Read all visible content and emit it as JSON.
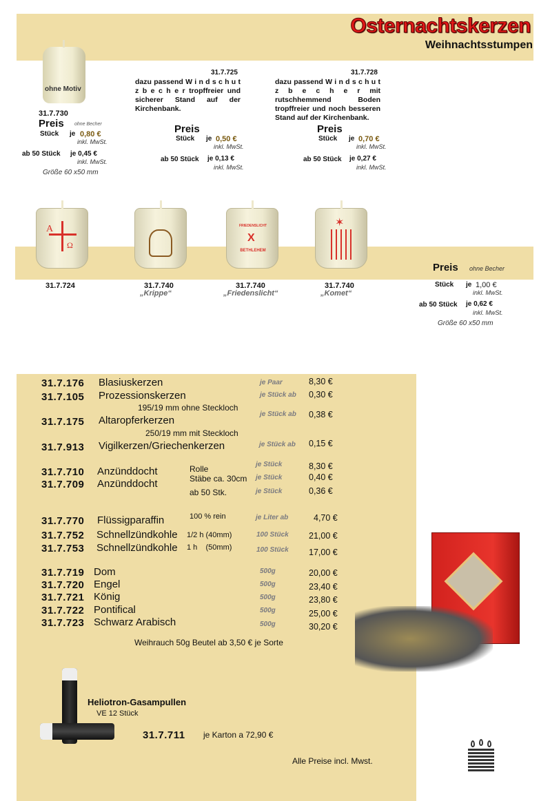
{
  "header": {
    "title": "Osternachtskerzen",
    "subtitle": "Weihnachtsstumpen"
  },
  "colors": {
    "band": "#f0dea6",
    "title": "#e01818"
  },
  "p730": {
    "label": "ohne Motiv",
    "code": "31.7.730",
    "preis": "Preis",
    "note": "ohne Becher",
    "stueck": "Stück",
    "je1": "je",
    "price1": "0,80 €",
    "mwst1": "inkl. MwSt.",
    "ab50": "ab 50 Stück",
    "je2": "je 0,45 €",
    "mwst2": "inkl. MwSt.",
    "size": "Größe 60 x50 mm"
  },
  "p725": {
    "code": "31.7.725",
    "desc": "dazu passend W i n d s c h u t z b e c h e r tropffreier und sicherer Stand auf der Kirchenbank.",
    "preis": "Preis",
    "stueck": "Stück",
    "je1": "je",
    "price1": "0,50 €",
    "mwst1": "inkl. MwSt.",
    "ab50": "ab 50 Stück",
    "je2": "je 0,13 €",
    "mwst2": "inkl. MwSt."
  },
  "p728": {
    "code": "31.7.728",
    "desc": "dazu passend W i n d s c h u t z b e c h e r mit rutschhemmend Boden tropffreier und noch besseren Stand auf der Kirchenbank.",
    "preis": "Preis",
    "stueck": "Stück",
    "je1": "je",
    "price1": "0,70 €",
    "mwst1": "inkl. MwSt.",
    "ab50": "ab 50 Stück",
    "je2": "je 0,27 €",
    "mwst2": "inkl. MwSt."
  },
  "cups": [
    {
      "code": "31.7.724",
      "label": "",
      "motif": "alpha-omega-cross"
    },
    {
      "code": "31.7.740",
      "label": "„Krippe“",
      "motif": "nativity"
    },
    {
      "code": "31.7.740",
      "label": "„Friedenslicht“",
      "motif": "friedenslicht",
      "t1": "FRIEDENSLICHT",
      "t2": "BETHLEHEM"
    },
    {
      "code": "31.7.740",
      "label": "„Komet“",
      "motif": "comet"
    }
  ],
  "cupprice": {
    "preis": "Preis",
    "note": "ohne Becher",
    "stueck": "Stück",
    "je1": "je",
    "price1": "1,00 €",
    "mwst1": "inkl. MwSt.",
    "ab50": "ab 50 Stück",
    "je2": "je 0,62 €",
    "mwst2": "inkl. MwSt.",
    "size": "Größe 60 x50 mm"
  },
  "list": {
    "r176": {
      "code": "31.7.176",
      "name": "Blasiuskerzen",
      "unit": "je Paar",
      "price": "8,30 €"
    },
    "r105": {
      "code": "31.7.105",
      "name": "Prozessionskerzen",
      "unit": "je Stück ab",
      "price": "0,30 €",
      "note": "195/19 mm ohne Steckloch"
    },
    "r175": {
      "code": "31.7.175",
      "name": "Altaropferkerzen",
      "unit": "je Stück ab",
      "price": "0,38 €",
      "note": "250/19 mm mit Steckloch"
    },
    "r913": {
      "code": "31.7.913",
      "name": "Vigilkerzen/Griechenkerzen",
      "unit": "je Stück ab",
      "price": "0,15 €"
    },
    "r710": {
      "code": "31.7.710",
      "name": "Anzünddocht",
      "opt": "Rolle",
      "unit": "je Stück",
      "price": "8,30 €"
    },
    "r709": {
      "code": "31.7.709",
      "name": "Anzünddocht",
      "opt": "Stäbe ca. 30cm",
      "unit": "je Stück",
      "price": "0,40 €",
      "opt2": "ab 50 Stk.",
      "unit2": "je Stück",
      "price2": "0,36 €"
    },
    "r770": {
      "code": "31.7.770",
      "name": "Flüssigparaffin",
      "opt": "100 % rein",
      "unit": "je Liter ab",
      "price": "4,70 €"
    },
    "r752": {
      "code": "31.7.752",
      "name": "Schnellzündkohle",
      "opt": "1/2 h (40mm)",
      "unit": "100 Stück",
      "price": "21,00 €"
    },
    "r753": {
      "code": "31.7.753",
      "name": "Schnellzündkohle",
      "opt": "1 h    (50mm)",
      "unit": "100 Stück",
      "price": "17,00 €"
    },
    "r719": {
      "code": "31.7.719",
      "name": "Dom",
      "unit": "500g",
      "price": "20,00 €"
    },
    "r720": {
      "code": "31.7.720",
      "name": "Engel",
      "unit": "500g",
      "price": "23,40 €"
    },
    "r721": {
      "code": "31.7.721",
      "name": "König",
      "unit": "500g",
      "price": "23,80 €"
    },
    "r722": {
      "code": "31.7.722",
      "name": "Pontifical",
      "unit": "500g",
      "price": "25,00 €"
    },
    "r723": {
      "code": "31.7.723",
      "name": "Schwarz Arabisch",
      "unit": "500g",
      "price": "30,20 €"
    },
    "weihrauch": "Weihrauch 50g Beutel ab    3,50 € je Sorte"
  },
  "helio": {
    "title": "Heliotron-Gasampullen",
    "ve": "VE 12 Stück",
    "code": "31.7.711",
    "price": "je Karton a 72,90 €"
  },
  "footer": "Alle Preise incl. Mwst."
}
